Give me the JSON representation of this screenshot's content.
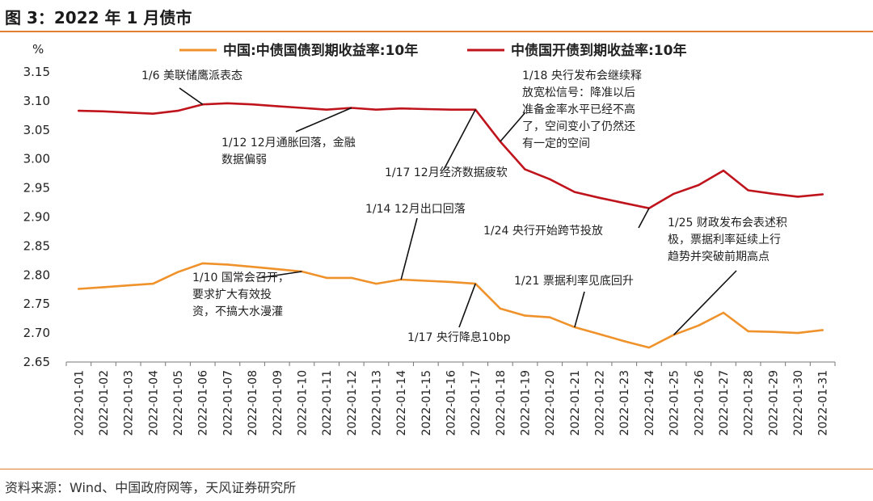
{
  "figure": {
    "title": "图 3：2022 年 1 月债市",
    "source": "资料来源：Wind、中国政府网等，天风证券研究所"
  },
  "colors": {
    "accent": "#e07f2f",
    "series_orange": "#f0922b",
    "series_red": "#c0141d"
  },
  "chart_data": {
    "type": "line",
    "ylabel": "%",
    "ylim": [
      2.65,
      3.15
    ],
    "yticks": [
      "3.15",
      "3.10",
      "3.05",
      "3.00",
      "2.95",
      "2.90",
      "2.85",
      "2.80",
      "2.75",
      "2.70",
      "2.65"
    ],
    "grid": false,
    "legend": "top",
    "x": [
      "2022-01-01",
      "2022-01-02",
      "2022-01-03",
      "2022-01-04",
      "2022-01-05",
      "2022-01-06",
      "2022-01-07",
      "2022-01-08",
      "2022-01-09",
      "2022-01-10",
      "2022-01-11",
      "2022-01-12",
      "2022-01-13",
      "2022-01-14",
      "2022-01-15",
      "2022-01-16",
      "2022-01-17",
      "2022-01-18",
      "2022-01-19",
      "2022-01-20",
      "2022-01-21",
      "2022-01-22",
      "2022-01-23",
      "2022-01-24",
      "2022-01-25",
      "2022-01-26",
      "2022-01-27",
      "2022-01-28",
      "2022-01-29",
      "2022-01-30",
      "2022-01-31"
    ],
    "series": [
      {
        "name": "中国:中债国债到期收益率:10年",
        "values": [
          2.776,
          2.779,
          2.782,
          2.785,
          2.805,
          2.82,
          2.818,
          2.814,
          2.81,
          2.806,
          2.795,
          2.795,
          2.785,
          2.792,
          2.79,
          2.788,
          2.785,
          2.742,
          2.73,
          2.727,
          2.71,
          2.698,
          2.686,
          2.675,
          2.697,
          2.713,
          2.735,
          2.703,
          2.702,
          2.7,
          2.705
        ]
      },
      {
        "name": "中债国开债到期收益率:10年",
        "values": [
          3.083,
          3.082,
          3.08,
          3.078,
          3.083,
          3.094,
          3.096,
          3.094,
          3.091,
          3.088,
          3.085,
          3.088,
          3.085,
          3.087,
          3.086,
          3.085,
          3.085,
          3.03,
          2.982,
          2.965,
          2.943,
          2.933,
          2.924,
          2.915,
          2.94,
          2.955,
          2.98,
          2.946,
          2.94,
          2.935,
          2.939
        ]
      }
    ],
    "annotations": [
      {
        "lines": [
          "1/6 美联储鹰派表态"
        ],
        "x_idx": 5,
        "y_ref": 1
      },
      {
        "lines": [
          "1/12 12月通胀回落，金融",
          "数据偏弱"
        ],
        "x_idx": 11,
        "y_ref": 1
      },
      {
        "lines": [
          "1/18 央行发布会继续释",
          "放宽松信号：降准以后",
          "准备金率水平已经不高",
          "了，空间变小了仍然还",
          "有一定的空间"
        ],
        "x_idx": 17,
        "y_ref": 1
      },
      {
        "lines": [
          "1/17 12月经济数据疲软"
        ],
        "x_idx": 16,
        "y_ref": 1
      },
      {
        "lines": [
          "1/24 央行开始跨节投放"
        ],
        "x_idx": 23,
        "y_ref": 1
      },
      {
        "lines": [
          "1/14 12月出口回落"
        ],
        "x_idx": 13,
        "y_ref": 0
      },
      {
        "lines": [
          "1/25 财政发布会表述积",
          "极，票据利率延续上行",
          "趋势并突破前期高点"
        ],
        "x_idx": 24,
        "y_ref": 0
      },
      {
        "lines": [
          "1/10 国常会召开，",
          "要求扩大有效投",
          "资，不搞大水漫灌"
        ],
        "x_idx": 9,
        "y_ref": 0
      },
      {
        "lines": [
          "1/21 票据利率见底回升"
        ],
        "x_idx": 20,
        "y_ref": 0
      },
      {
        "lines": [
          "1/17 央行降息10bp"
        ],
        "x_idx": 16,
        "y_ref": 0
      }
    ]
  }
}
